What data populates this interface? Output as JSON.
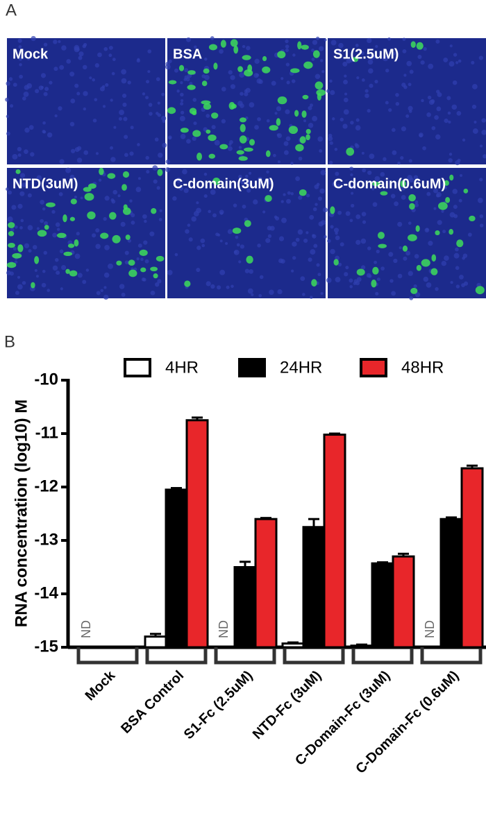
{
  "panel_a": {
    "label": "A",
    "images": [
      "Mock",
      "BSA",
      "S1(2.5uM)",
      "NTD(3uM)",
      "C-domain(3uM)",
      "C-domain(0.6uM)"
    ]
  },
  "panel_b": {
    "label": "B"
  },
  "chart_data": {
    "type": "bar",
    "y_label": "RNA concentration (log10) M",
    "categories": [
      "Mock",
      "BSA Control",
      "S1-Fc (2.5uM)",
      "NTD-Fc (3uM)",
      "C-Domain-Fc (3uM)",
      "C-Domain-Fc (0.6uM)"
    ],
    "series": [
      {
        "name": "4HR",
        "color": "#ffffff",
        "values": [
          null,
          -14.8,
          null,
          -14.93,
          -14.97,
          null
        ],
        "errors": [
          null,
          0.05,
          null,
          0.02,
          0.02,
          null
        ],
        "value_labels": [
          "ND",
          null,
          "ND",
          null,
          null,
          "ND"
        ]
      },
      {
        "name": "24HR",
        "color": "#000000",
        "values": [
          null,
          -12.05,
          -13.5,
          -12.75,
          -13.43,
          -12.6
        ],
        "errors": [
          null,
          0.03,
          0.1,
          0.15,
          0.02,
          0.03
        ]
      },
      {
        "name": "48HR",
        "color": "#e8262a",
        "values": [
          null,
          -10.75,
          -12.6,
          -11.02,
          -13.3,
          -11.65
        ],
        "errors": [
          null,
          0.05,
          0.02,
          0.02,
          0.05,
          0.05
        ]
      }
    ],
    "ylim": [
      -15,
      -10
    ],
    "yticks": [
      -15,
      -14,
      -13,
      -12,
      -11,
      -10
    ],
    "grid": false
  }
}
